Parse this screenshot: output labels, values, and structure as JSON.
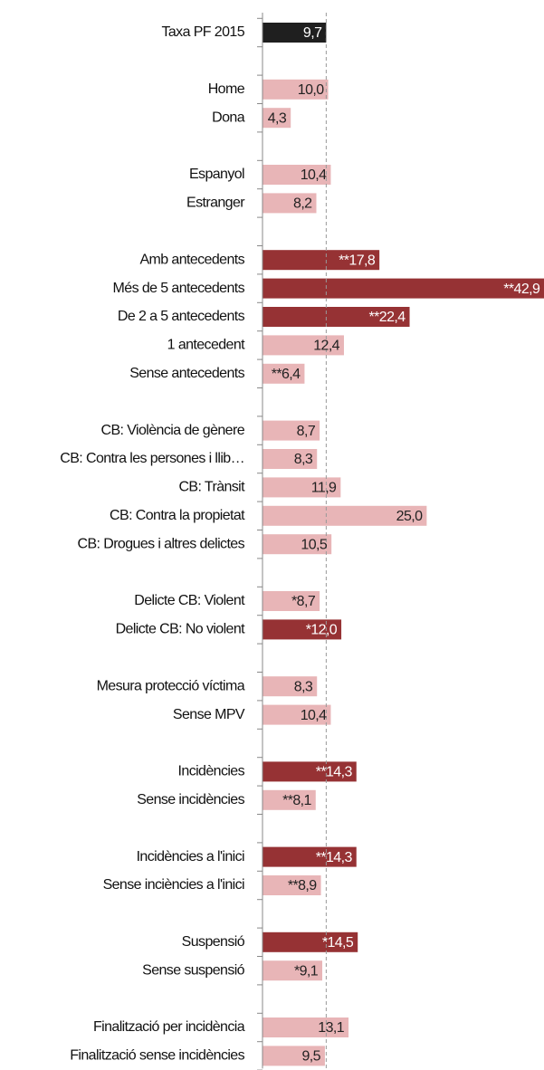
{
  "chart_data": {
    "type": "hbar",
    "categories": [
      "Taxa PF 2015",
      null,
      "Home",
      "Dona",
      null,
      "Espanyol",
      "Estranger",
      null,
      "Amb antecedents",
      "Més de 5 antecedents",
      "De 2 a 5 antecedents",
      "1 antecedent",
      "Sense antecedents",
      null,
      "CB: Violència de gènere",
      "CB: Contra les persones i llib…",
      "CB: Trànsit",
      "CB: Contra la propietat",
      "CB: Drogues i altres delictes",
      null,
      "Delicte CB: Violent",
      "Delicte CB: No violent",
      null,
      "Mesura protecció víctima",
      "Sense MPV",
      null,
      "Incidències",
      "Sense incidències",
      null,
      "Incidències a l'inici",
      "Sense inciències a l'inici",
      null,
      "Suspensió",
      "Sense suspensió",
      null,
      "Finalització per incidència",
      "Finalització sense incidències"
    ],
    "values": [
      9.7,
      null,
      10.0,
      4.3,
      null,
      10.4,
      8.2,
      null,
      17.8,
      42.9,
      22.4,
      12.4,
      6.4,
      null,
      8.7,
      8.3,
      11.9,
      25.0,
      10.5,
      null,
      8.7,
      12.0,
      null,
      8.3,
      10.4,
      null,
      14.3,
      8.1,
      null,
      14.3,
      8.9,
      null,
      14.5,
      9.1,
      null,
      13.1,
      9.5
    ],
    "value_labels": [
      "9,7",
      null,
      "10,0",
      "4,3",
      null,
      "10,4",
      "8,2",
      null,
      "**17,8",
      "**42,9",
      "**22,4",
      "12,4",
      "**6,4",
      null,
      "8,7",
      "8,3",
      "11,9",
      "25,0",
      "10,5",
      null,
      "*8,7",
      "*12,0",
      null,
      "8,3",
      "10,4",
      null,
      "**14,3",
      "**8,1",
      null,
      "**14,3",
      "**8,9",
      null,
      "*14,5",
      "*9,1",
      null,
      "13,1",
      "9,5"
    ],
    "colors": [
      "#1f1f1f",
      null,
      "#e8b5b7",
      "#e8b5b7",
      null,
      "#e8b5b7",
      "#e8b5b7",
      null,
      "#963234",
      "#963234",
      "#963234",
      "#e8b5b7",
      "#e8b5b7",
      null,
      "#e8b5b7",
      "#e8b5b7",
      "#e8b5b7",
      "#e8b5b7",
      "#e8b5b7",
      null,
      "#e8b5b7",
      "#963234",
      null,
      "#e8b5b7",
      "#e8b5b7",
      null,
      "#963234",
      "#e8b5b7",
      null,
      "#963234",
      "#e8b5b7",
      null,
      "#963234",
      "#e8b5b7",
      null,
      "#e8b5b7",
      "#e8b5b7"
    ],
    "xlim": [
      0,
      43
    ],
    "reference_line": 9.7
  }
}
